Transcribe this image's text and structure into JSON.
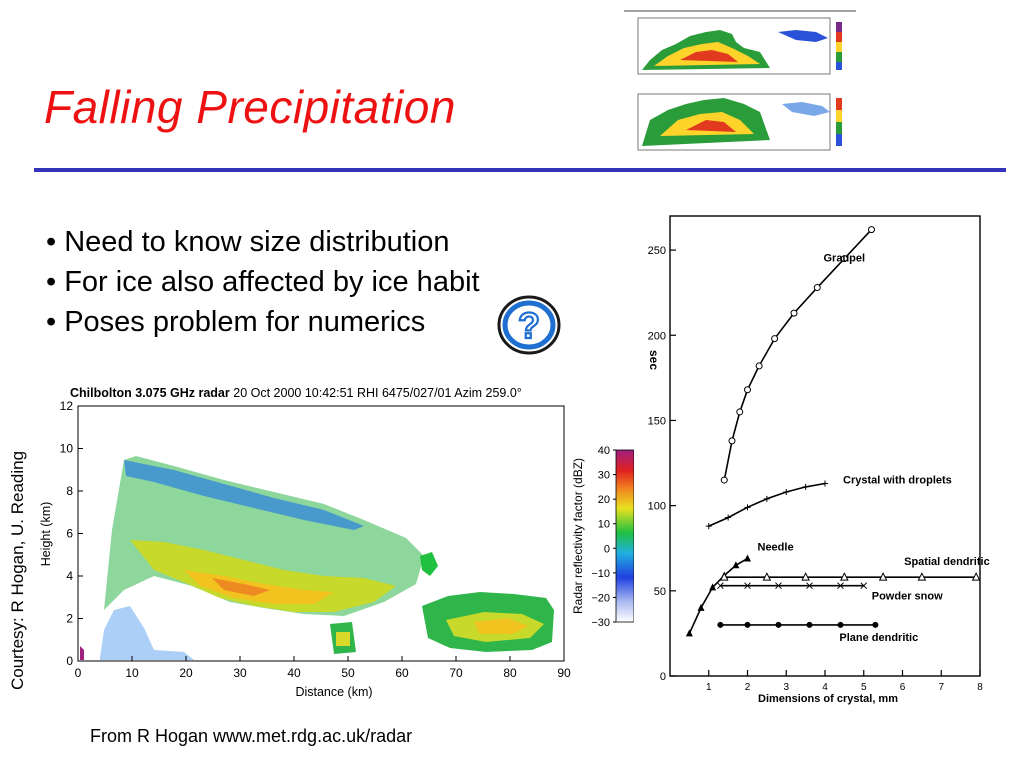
{
  "slide": {
    "title": "Falling Precipitation",
    "bullets": [
      "• Need to know size distribution",
      "• For ice also affected by ice habit",
      "• Poses problem for numerics"
    ],
    "courtesy": "Courtesy: R Hogan, U. Reading",
    "source": "From R Hogan www.met.rdg.ac.uk/radar",
    "question_glyph": "?"
  },
  "colors": {
    "title": "#ee1111",
    "rule": "#3333bb",
    "icon_ring": "#1f6fd0"
  },
  "chart_data": [
    {
      "type": "heatmap",
      "title_bold": "Chilbolton 3.075 GHz radar",
      "title_rest": " 20 Oct 2000 10:42:51 RHI 6475/027/01 Azim 259.0°",
      "xlabel": "Distance (km)",
      "ylabel": "Height (km)",
      "xlim": [
        0,
        90
      ],
      "ylim": [
        0,
        12
      ],
      "x_ticks": [
        "0",
        "10",
        "20",
        "30",
        "40",
        "50",
        "60",
        "70",
        "80",
        "90"
      ],
      "y_ticks": [
        "0",
        "2",
        "4",
        "6",
        "8",
        "10",
        "12"
      ],
      "colorbar": {
        "label": "Radar reflectivity factor (dBZ)",
        "ticks": [
          "40",
          "30",
          "20",
          "10",
          "0",
          "−10",
          "−20",
          "−30"
        ],
        "range": [
          -30,
          40
        ]
      }
    },
    {
      "type": "line",
      "xlabel": "Dimensions of crystal,  mm",
      "ylabel": "sec",
      "xlim": [
        0,
        8
      ],
      "ylim": [
        0,
        270
      ],
      "x_ticks": [
        "1",
        "2",
        "3",
        "4",
        "5",
        "6",
        "7",
        "8"
      ],
      "y_ticks": [
        "0",
        "50",
        "100",
        "150",
        "200",
        "250"
      ],
      "series": [
        {
          "name": "Graupel",
          "x": [
            1.4,
            1.6,
            1.8,
            2.0,
            2.3,
            2.7,
            3.2,
            3.8,
            4.5,
            5.2
          ],
          "y": [
            115,
            138,
            155,
            168,
            182,
            198,
            213,
            228,
            245,
            262
          ]
        },
        {
          "name": "Crystal with droplets",
          "x": [
            1.0,
            1.5,
            2.0,
            2.5,
            3.0,
            3.5,
            4.0
          ],
          "y": [
            88,
            93,
            99,
            104,
            108,
            111,
            113
          ]
        },
        {
          "name": "Needle",
          "x": [
            0.5,
            0.8,
            1.1,
            1.4,
            1.7,
            2.0
          ],
          "y": [
            25,
            40,
            52,
            59,
            65,
            69
          ]
        },
        {
          "name": "Spatial dendritic",
          "x": [
            1.4,
            2.5,
            3.5,
            4.5,
            5.5,
            6.5,
            7.9
          ],
          "y": [
            58,
            58,
            58,
            58,
            58,
            58,
            58
          ]
        },
        {
          "name": "Powder snow",
          "x": [
            1.3,
            2.0,
            2.8,
            3.6,
            4.4,
            5.0
          ],
          "y": [
            53,
            53,
            53,
            53,
            53,
            53
          ]
        },
        {
          "name": "Plane dendritic",
          "x": [
            1.3,
            2.0,
            2.8,
            3.6,
            4.4,
            5.3
          ],
          "y": [
            30,
            30,
            30,
            30,
            30,
            30
          ]
        }
      ]
    }
  ]
}
